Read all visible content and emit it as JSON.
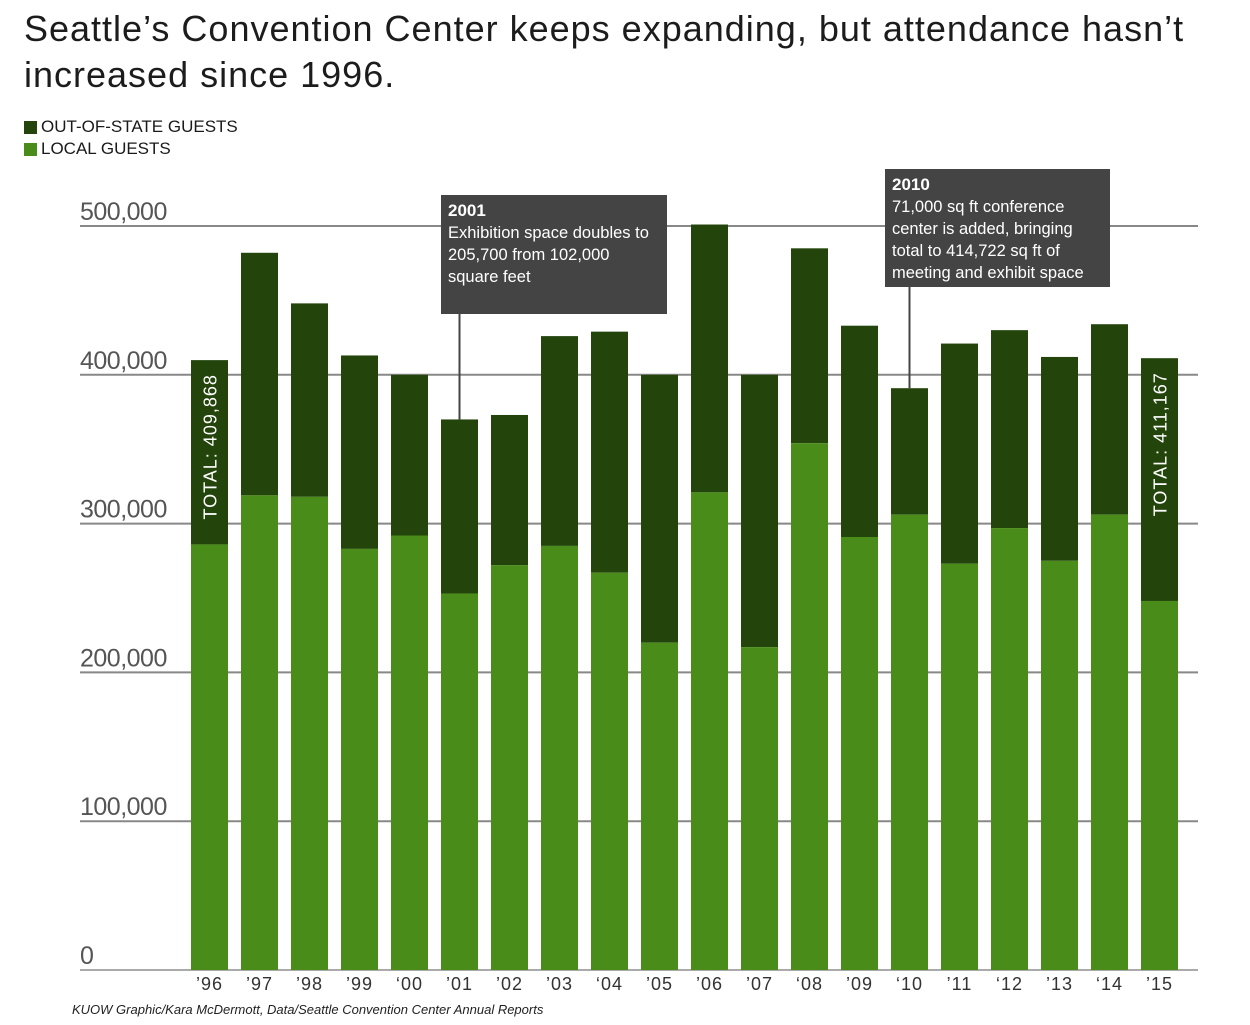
{
  "title": "Seattle’s Convention Center keeps expanding, but attendance hasn’t increased since 1996.",
  "legend": [
    {
      "label": "OUT-OF-STATE GUESTS",
      "color": "#23450b"
    },
    {
      "label": "LOCAL GUESTS",
      "color": "#4a8c19"
    }
  ],
  "source": "KUOW Graphic/Kara McDermott, Data/Seattle Convention Center Annual Reports",
  "chart_data": {
    "type": "bar",
    "stacked": true,
    "categories": [
      "’96",
      "’97",
      "’98",
      "’99",
      "‘00",
      "’01",
      "’02",
      "’03",
      "‘04",
      "’05",
      "’06",
      "’07",
      "‘08",
      "’09",
      "‘10",
      "’11",
      "‘12",
      "’13",
      "‘14",
      "’15"
    ],
    "series": [
      {
        "name": "LOCAL GUESTS",
        "color": "#4a8c19",
        "values": [
          286000,
          319000,
          318000,
          283000,
          292000,
          253000,
          272000,
          285000,
          267000,
          220000,
          321000,
          217000,
          354000,
          291000,
          306000,
          273000,
          297000,
          275000,
          306000,
          248000
        ]
      },
      {
        "name": "OUT-OF-STATE GUESTS",
        "color": "#23450b",
        "values": [
          123868,
          163000,
          130000,
          130000,
          108000,
          117000,
          101000,
          141000,
          162000,
          180000,
          180000,
          183000,
          131000,
          142000,
          85000,
          148000,
          133000,
          137000,
          128000,
          163167
        ]
      }
    ],
    "yticks": [
      "0",
      "100,000",
      "200,000",
      "300,000",
      "400,000",
      "500,000"
    ],
    "ylim": [
      0,
      500000
    ],
    "grid": true,
    "bar_labels": [
      {
        "category_index": 0,
        "text": "TOTAL: 409,868"
      },
      {
        "category_index": 19,
        "text": "TOTAL: 411,167"
      }
    ],
    "annotations": [
      {
        "category_index": 5,
        "year": "2001",
        "lines": [
          "Exhibition space doubles to",
          "205,700 from 102,000",
          "square feet"
        ]
      },
      {
        "category_index": 14,
        "year": "2010",
        "lines": [
          "71,000 sq ft conference",
          "center is added, bringing",
          "total to 414,722 sq ft of",
          "meeting and exhibit space"
        ]
      }
    ]
  }
}
